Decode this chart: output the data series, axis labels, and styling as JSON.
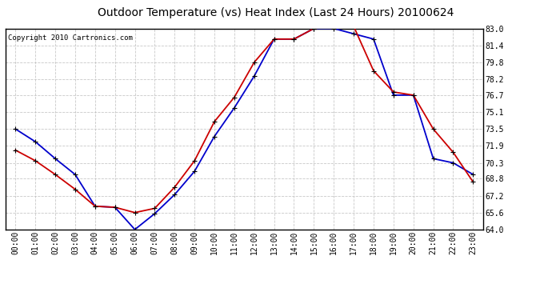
{
  "title": "Outdoor Temperature (vs) Heat Index (Last 24 Hours) 20100624",
  "copyright_text": "Copyright 2010 Cartronics.com",
  "hours": [
    0,
    1,
    2,
    3,
    4,
    5,
    6,
    7,
    8,
    9,
    10,
    11,
    12,
    13,
    14,
    15,
    16,
    17,
    18,
    19,
    20,
    21,
    22,
    23
  ],
  "hour_labels": [
    "00:00",
    "01:00",
    "02:00",
    "03:00",
    "04:00",
    "05:00",
    "06:00",
    "07:00",
    "08:00",
    "09:00",
    "10:00",
    "11:00",
    "12:00",
    "13:00",
    "14:00",
    "15:00",
    "16:00",
    "17:00",
    "18:00",
    "19:00",
    "20:00",
    "21:00",
    "22:00",
    "23:00"
  ],
  "temp_blue": [
    73.5,
    72.3,
    70.7,
    69.2,
    66.2,
    66.1,
    64.0,
    65.5,
    67.3,
    69.5,
    72.8,
    75.5,
    78.5,
    82.0,
    82.0,
    83.0,
    83.0,
    82.5,
    82.0,
    76.7,
    76.7,
    70.7,
    70.3,
    69.2
  ],
  "heat_red": [
    71.5,
    70.5,
    69.2,
    67.8,
    66.2,
    66.1,
    65.6,
    66.0,
    68.0,
    70.5,
    74.2,
    76.5,
    79.8,
    82.0,
    82.0,
    83.0,
    83.2,
    83.2,
    79.0,
    77.0,
    76.7,
    73.5,
    71.3,
    68.5
  ],
  "ylim_min": 64.0,
  "ylim_max": 83.0,
  "ytick_values": [
    64.0,
    65.6,
    67.2,
    68.8,
    70.3,
    71.9,
    73.5,
    75.1,
    76.7,
    78.2,
    79.8,
    81.4,
    83.0
  ],
  "blue_color": "#0000cc",
  "red_color": "#cc0000",
  "background_color": "#ffffff",
  "grid_color": "#bbbbbb",
  "title_fontsize": 10,
  "copyright_fontsize": 6.5,
  "tick_fontsize": 7
}
